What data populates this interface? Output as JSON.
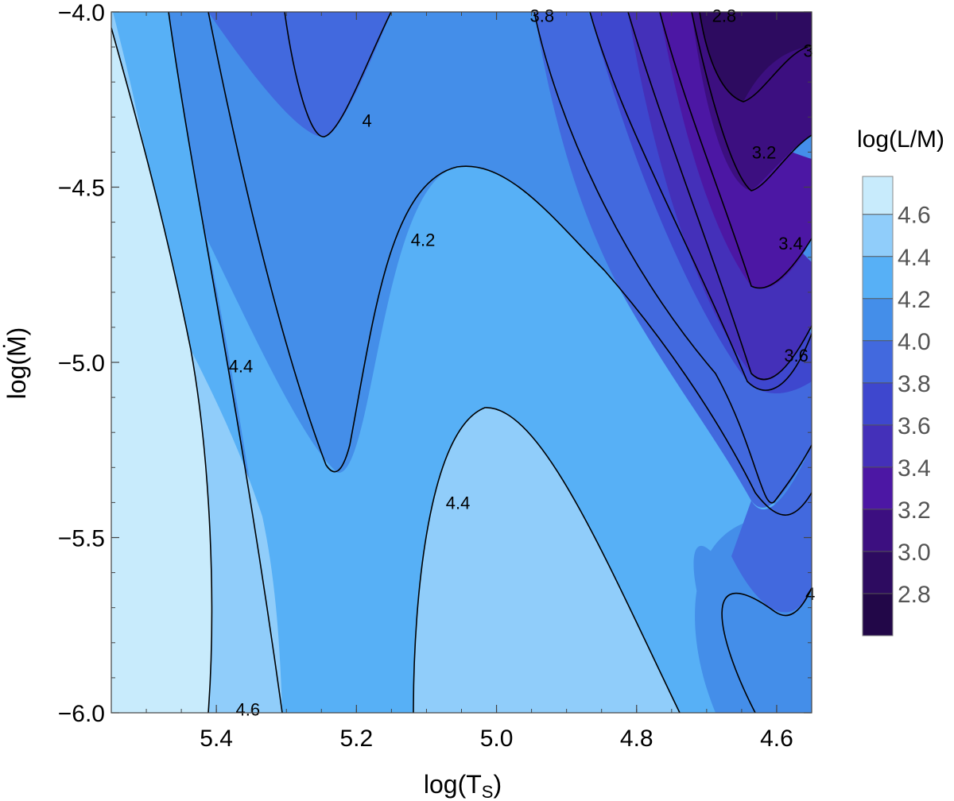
{
  "chart_data": {
    "type": "contour",
    "xlabel": "log(T",
    "xlabel_sub": "S",
    "xlabel_close": ")",
    "ylabel": "log(Ṁ)",
    "xlim": [
      5.55,
      4.55
    ],
    "ylim": [
      -6.0,
      -4.0
    ],
    "x_ticks": [
      {
        "value": 5.4,
        "label": "5.4"
      },
      {
        "value": 5.2,
        "label": "5.2"
      },
      {
        "value": 5.0,
        "label": "5.0"
      },
      {
        "value": 4.8,
        "label": "4.8"
      },
      {
        "value": 4.6,
        "label": "4.6"
      }
    ],
    "y_ticks": [
      {
        "value": -4.0,
        "label": "−4.0"
      },
      {
        "value": -4.5,
        "label": "−4.5"
      },
      {
        "value": -5.0,
        "label": "−5.0"
      },
      {
        "value": -5.5,
        "label": "−5.5"
      },
      {
        "value": -6.0,
        "label": "−6.0"
      }
    ],
    "colorbar": {
      "title": "log(L/M)",
      "range": [
        2.6,
        4.78
      ],
      "ticks": [
        {
          "value": 4.6,
          "label": "4.6"
        },
        {
          "value": 4.4,
          "label": "4.4"
        },
        {
          "value": 4.2,
          "label": "4.2"
        },
        {
          "value": 4.0,
          "label": "4.0"
        },
        {
          "value": 3.8,
          "label": "3.8"
        },
        {
          "value": 3.6,
          "label": "3.6"
        },
        {
          "value": 3.4,
          "label": "3.4"
        },
        {
          "value": 3.2,
          "label": "3.2"
        },
        {
          "value": 3.0,
          "label": "3.0"
        },
        {
          "value": 2.8,
          "label": "2.8"
        }
      ],
      "bands": [
        {
          "lo": 4.6,
          "hi": 4.78,
          "color": "#c8ebfc"
        },
        {
          "lo": 4.4,
          "hi": 4.6,
          "color": "#90cdfa"
        },
        {
          "lo": 4.2,
          "hi": 4.4,
          "color": "#57b0f6"
        },
        {
          "lo": 4.0,
          "hi": 4.2,
          "color": "#448ee9"
        },
        {
          "lo": 3.8,
          "hi": 4.0,
          "color": "#4269de"
        },
        {
          "lo": 3.6,
          "hi": 3.8,
          "color": "#3e47ce"
        },
        {
          "lo": 3.4,
          "hi": 3.6,
          "color": "#4430b9"
        },
        {
          "lo": 3.2,
          "hi": 3.4,
          "color": "#4c17a4"
        },
        {
          "lo": 3.0,
          "hi": 3.2,
          "color": "#3c0f80"
        },
        {
          "lo": 2.8,
          "hi": 3.0,
          "color": "#2d0b60"
        },
        {
          "lo": 2.6,
          "hi": 2.8,
          "color": "#220748"
        }
      ]
    },
    "contour_labels": [
      {
        "text": "4.6",
        "x": 5.355,
        "y": -5.99
      },
      {
        "text": "4.4",
        "x": 5.365,
        "y": -5.01
      },
      {
        "text": "4.4",
        "x": 5.055,
        "y": -5.4
      },
      {
        "text": "4.2",
        "x": 5.105,
        "y": -4.65
      },
      {
        "text": "4",
        "x": 5.185,
        "y": -4.31
      },
      {
        "text": "3.8",
        "x": 4.935,
        "y": -4.01
      },
      {
        "text": "2.8",
        "x": 4.675,
        "y": -4.01
      },
      {
        "text": "3",
        "x": 4.555,
        "y": -4.11
      },
      {
        "text": "3.2",
        "x": 4.618,
        "y": -4.4
      },
      {
        "text": "3.4",
        "x": 4.58,
        "y": -4.66
      },
      {
        "text": "3.6",
        "x": 4.572,
        "y": -4.98
      },
      {
        "text": "4",
        "x": 4.552,
        "y": -5.66
      }
    ]
  }
}
